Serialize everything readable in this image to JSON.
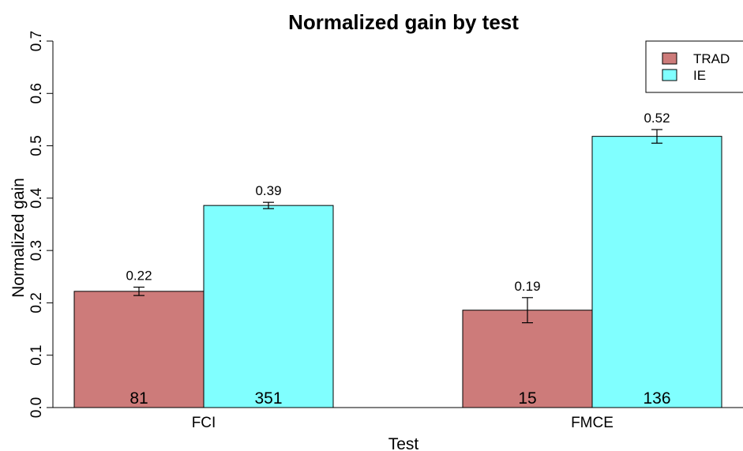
{
  "chart_data": {
    "type": "bar",
    "title": "Normalized gain by test",
    "xlabel": "Test",
    "ylabel": "Normalized gain",
    "categories": [
      "FCI",
      "FMCE"
    ],
    "series": [
      {
        "name": "TRAD",
        "color": "#cd7b7a",
        "values": [
          0.222,
          0.186
        ],
        "value_labels": [
          "0.22",
          "0.19"
        ],
        "error": [
          0.008,
          0.024
        ],
        "n_labels": [
          "81",
          "15"
        ]
      },
      {
        "name": "IE",
        "color": "#80ffff",
        "values": [
          0.386,
          0.518
        ],
        "value_labels": [
          "0.39",
          "0.52"
        ],
        "error": [
          0.006,
          0.013
        ],
        "n_labels": [
          "351",
          "136"
        ]
      }
    ],
    "ylim": [
      0,
      0.7
    ],
    "yticks": [
      "0.0",
      "0.1",
      "0.2",
      "0.3",
      "0.4",
      "0.5",
      "0.6",
      "0.7"
    ],
    "grid": false,
    "legend_position": "top-right",
    "error_bars": true
  }
}
